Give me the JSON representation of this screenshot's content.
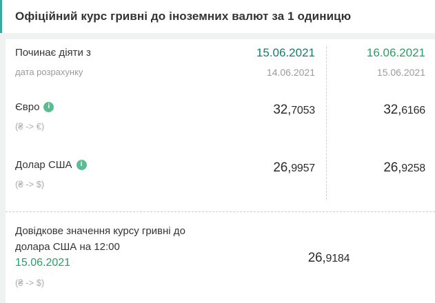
{
  "colors": {
    "teal": "#35ab99",
    "date-col1": "#0f7d70",
    "green": "#23a164",
    "icon-green": "#5abd91"
  },
  "icons": {
    "info": "i"
  },
  "header": {
    "title": "Офіційний курс гривні до іноземних валют за 1 одиницю"
  },
  "table": {
    "effective_label": "Починає діяти з",
    "calc_date_label": "дата розрахунку",
    "columns": [
      {
        "effective_date": "15.06.2021",
        "calc_date": "14.06.2021"
      },
      {
        "effective_date": "16.06.2021",
        "calc_date": "15.06.2021"
      }
    ],
    "rows": [
      {
        "name": "Євро",
        "pair": "(₴ -> €)",
        "values": [
          {
            "int": "32,",
            "frac": "7053"
          },
          {
            "int": "32,",
            "frac": "6166"
          }
        ]
      },
      {
        "name": "Долар США",
        "pair": "(₴ -> $)",
        "values": [
          {
            "int": "26,",
            "frac": "9957"
          },
          {
            "int": "26,",
            "frac": "9258"
          }
        ]
      }
    ]
  },
  "reference": {
    "label_line1": "Довідкове значення курсу гривні до",
    "label_line2": "долара США на 12:00",
    "date": "15.06.2021",
    "pair": "(₴ -> $)",
    "value": {
      "int": "26,",
      "frac": "9184"
    }
  }
}
